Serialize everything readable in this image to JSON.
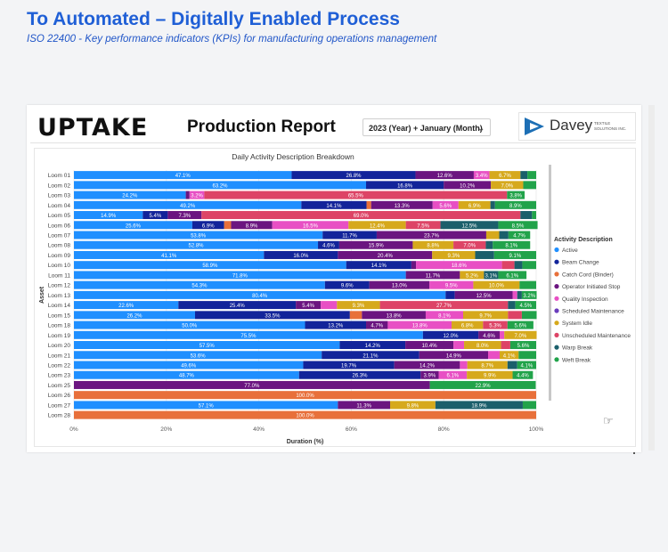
{
  "header": {
    "title": "To Automated – Digitally Enabled Process",
    "subtitle": "ISO 22400 - Key performance indicators (KPIs) for manufacturing operations management"
  },
  "report": {
    "logo_text": "UPTAKE",
    "title": "Production Report",
    "slicer_value": "2023 (Year) + January (Month)",
    "brand_name": "Davey",
    "brand_tagline": "TEXTILE SOLUTIONS INC.",
    "brand_color": "#1d6fb5"
  },
  "chart_data": {
    "type": "bar",
    "orientation": "horizontal",
    "stacked": "100%",
    "title": "Daily Activity Description Breakdown",
    "xlabel": "Duration (%)",
    "ylabel": "Asset",
    "xlim": [
      0,
      100
    ],
    "x_ticks": [
      "0%",
      "20%",
      "40%",
      "60%",
      "80%",
      "100%"
    ],
    "legend_title": "Activity Description",
    "legend_position": "right",
    "categories": [
      "Loom 01",
      "Loom 02",
      "Loom 03",
      "Loom 04",
      "Loom 05",
      "Loom 06",
      "Loom 07",
      "Loom 08",
      "Loom 09",
      "Loom 10",
      "Loom 11",
      "Loom 12",
      "Loom 13",
      "Loom 14",
      "Loom 15",
      "Loom 18",
      "Loom 19",
      "Loom 20",
      "Loom 21",
      "Loom 22",
      "Loom 23",
      "Loom 25",
      "Loom 26",
      "Loom 27",
      "Loom 28"
    ],
    "series": [
      {
        "name": "Active",
        "color": "#1f8fff",
        "values": [
          47.1,
          63.2,
          24.2,
          49.2,
          14.9,
          25.6,
          53.8,
          52.8,
          41.1,
          58.9,
          71.8,
          54.3,
          80.4,
          22.6,
          26.2,
          50.0,
          75.5,
          57.5,
          53.6,
          49.6,
          48.7,
          0,
          0,
          57.1,
          0
        ]
      },
      {
        "name": "Beam Change",
        "color": "#12249a",
        "values": [
          26.8,
          16.8,
          0,
          14.1,
          5.4,
          6.9,
          11.7,
          4.6,
          16.0,
          14.1,
          0,
          9.6,
          2.0,
          25.4,
          33.5,
          13.2,
          12.0,
          14.2,
          21.1,
          19.7,
          26.3,
          0,
          0,
          0,
          0
        ]
      },
      {
        "name": "Catch Cord (Binder)",
        "color": "#e8703a",
        "values": [
          0,
          0,
          0,
          1.0,
          0,
          1.5,
          0,
          0,
          0,
          0,
          0,
          0,
          0,
          0,
          2.6,
          0,
          0,
          0,
          0,
          0,
          0,
          0,
          100.0,
          0,
          100.0
        ]
      },
      {
        "name": "Operator Initiated Stop",
        "color": "#6b1580",
        "values": [
          12.6,
          10.2,
          0.8,
          13.3,
          7.3,
          8.9,
          23.7,
          15.9,
          20.4,
          1.0,
          11.7,
          13.0,
          12.5,
          5.4,
          13.8,
          4.7,
          4.6,
          10.4,
          14.9,
          14.2,
          3.9,
          77.0,
          0,
          11.3,
          0
        ]
      },
      {
        "name": "Quality Inspection",
        "color": "#e84fc4",
        "values": [
          3.4,
          0,
          3.2,
          5.6,
          0,
          16.5,
          0,
          0,
          0,
          18.6,
          0,
          9.5,
          1.0,
          3.5,
          8.1,
          13.8,
          1.0,
          2.3,
          2.5,
          1.6,
          6.1,
          0,
          0,
          0,
          0
        ]
      },
      {
        "name": "Scheduled Maintenance",
        "color": "#6a3cbc",
        "values": [
          0,
          0,
          0,
          0,
          0,
          0,
          0,
          0,
          0,
          0,
          0,
          0,
          0,
          0,
          0,
          0,
          0,
          0,
          0,
          0,
          0,
          0,
          0,
          0,
          0
        ]
      },
      {
        "name": "System Idle",
        "color": "#d6a91c",
        "values": [
          6.7,
          7.0,
          0,
          6.9,
          0,
          12.4,
          2.8,
          8.8,
          9.3,
          0,
          5.2,
          10.0,
          0,
          9.3,
          9.7,
          6.8,
          7.0,
          8.0,
          4.1,
          8.7,
          9.9,
          0,
          0,
          9.8,
          0
        ]
      },
      {
        "name": "Unscheduled Maintenance",
        "color": "#dd4466",
        "values": [
          0,
          0,
          65.5,
          0,
          69.0,
          7.5,
          0,
          7.0,
          0,
          2.7,
          0,
          0,
          0,
          27.7,
          3.0,
          5.3,
          0,
          2.0,
          0,
          0,
          0,
          0,
          0,
          0,
          0
        ]
      },
      {
        "name": "Warp Break",
        "color": "#1b5f6b",
        "values": [
          1.5,
          0,
          0,
          1.0,
          2.5,
          12.5,
          2.0,
          1.5,
          4.1,
          1.7,
          3.1,
          0,
          1.0,
          1.6,
          0,
          0,
          0,
          0,
          0,
          2.1,
          0,
          0,
          0,
          18.9,
          0
        ]
      },
      {
        "name": "Weft Break",
        "color": "#21a34a",
        "values": [
          1.9,
          2.8,
          3.8,
          8.9,
          0.9,
          8.5,
          4.7,
          8.1,
          9.1,
          3.0,
          6.1,
          3.6,
          3.2,
          4.5,
          3.2,
          5.6,
          0,
          5.6,
          3.8,
          4.1,
          4.4,
          22.9,
          0,
          2.9,
          0
        ]
      }
    ],
    "data_labels": [
      [
        [
          "Active",
          "47.1%"
        ],
        [
          "Beam Change",
          "26.8%"
        ],
        [
          "Operator Initiated Stop",
          "12.6%"
        ],
        [
          "Quality Inspection",
          "3.4%"
        ],
        [
          "System Idle",
          "6.7%"
        ]
      ],
      [
        [
          "Active",
          "63.2%"
        ],
        [
          "Beam Change",
          "16.8%"
        ],
        [
          "Operator Initiated Stop",
          "10.2%"
        ],
        [
          "System Idle",
          "7.0%"
        ]
      ],
      [
        [
          "Active",
          "24.2%"
        ],
        [
          "Quality Inspection",
          "3.2%"
        ],
        [
          "Unscheduled Maintenance",
          "65.5%"
        ],
        [
          "Weft Break",
          "3.8%"
        ]
      ],
      [
        [
          "Active",
          "49.2%"
        ],
        [
          "Beam Change",
          "14.1%"
        ],
        [
          "Operator Initiated Stop",
          "13.3%"
        ],
        [
          "Quality Inspection",
          "5.6%"
        ],
        [
          "System Idle",
          "6.9%"
        ],
        [
          "Weft Break",
          "8.9%"
        ]
      ],
      [
        [
          "Active",
          "14.9%"
        ],
        [
          "Beam Change",
          "5.4%"
        ],
        [
          "Operator Initiated Stop",
          "7.3%"
        ],
        [
          "Unscheduled Maintenance",
          "69.0%"
        ]
      ],
      [
        [
          "Active",
          "25.6%"
        ],
        [
          "Beam Change",
          "6.9%"
        ],
        [
          "Operator Initiated Stop",
          "8.9%"
        ],
        [
          "Quality Inspection",
          "16.5%"
        ],
        [
          "System Idle",
          "12.4%"
        ],
        [
          "Unscheduled Maintenance",
          "7.5%"
        ],
        [
          "Warp Break",
          "12.5%"
        ],
        [
          "Weft Break",
          "8.5%"
        ]
      ],
      [
        [
          "Active",
          "53.8%"
        ],
        [
          "Beam Change",
          "11.7%"
        ],
        [
          "Operator Initiated Stop",
          "23.7%"
        ],
        [
          "Weft Break",
          "4.7%"
        ]
      ],
      [
        [
          "Active",
          "52.8%"
        ],
        [
          "Beam Change",
          "4.6%"
        ],
        [
          "Operator Initiated Stop",
          "15.9%"
        ],
        [
          "System Idle",
          "8.8%"
        ],
        [
          "Unscheduled Maintenance",
          "7.0%"
        ],
        [
          "Weft Break",
          "8.1%"
        ]
      ],
      [
        [
          "Active",
          "41.1%"
        ],
        [
          "Beam Change",
          "16.0%"
        ],
        [
          "Operator Initiated Stop",
          "20.4%"
        ],
        [
          "System Idle",
          "9.3%"
        ],
        [
          "Weft Break",
          "9.1%"
        ]
      ],
      [
        [
          "Active",
          "58.9%"
        ],
        [
          "Beam Change",
          "14.1%"
        ],
        [
          "Quality Inspection",
          "18.6%"
        ]
      ],
      [
        [
          "Active",
          "71.8%"
        ],
        [
          "Operator Initiated Stop",
          "11.7%"
        ],
        [
          "System Idle",
          "5.2%"
        ],
        [
          "Warp Break",
          "3.1%"
        ],
        [
          "Weft Break",
          "6.1%"
        ]
      ],
      [
        [
          "Active",
          "54.3%"
        ],
        [
          "Beam Change",
          "9.6%"
        ],
        [
          "Operator Initiated Stop",
          "13.0%"
        ],
        [
          "Quality Inspection",
          "9.5%"
        ],
        [
          "System Idle",
          "10.0%"
        ]
      ],
      [
        [
          "Active",
          "80.4%"
        ],
        [
          "Operator Initiated Stop",
          "12.5%"
        ],
        [
          "Weft Break",
          "3.2%"
        ]
      ],
      [
        [
          "Active",
          "22.6%"
        ],
        [
          "Beam Change",
          "25.4%"
        ],
        [
          "Operator Initiated Stop",
          "5.4%"
        ],
        [
          "System Idle",
          "9.3%"
        ],
        [
          "Unscheduled Maintenance",
          "27.7%"
        ],
        [
          "Weft Break",
          "4.5%"
        ]
      ],
      [
        [
          "Active",
          "26.2%"
        ],
        [
          "Beam Change",
          "33.5%"
        ],
        [
          "Operator Initiated Stop",
          "13.8%"
        ],
        [
          "Quality Inspection",
          "8.1%"
        ],
        [
          "System Idle",
          "9.7%"
        ]
      ],
      [
        [
          "Active",
          "50.0%"
        ],
        [
          "Beam Change",
          "13.2%"
        ],
        [
          "Operator Initiated Stop",
          "4.7%"
        ],
        [
          "Quality Inspection",
          "13.8%"
        ],
        [
          "System Idle",
          "6.8%"
        ],
        [
          "Unscheduled Maintenance",
          "5.3%"
        ],
        [
          "Weft Break",
          "5.6%"
        ]
      ],
      [
        [
          "Active",
          "75.5%"
        ],
        [
          "Beam Change",
          "12.0%"
        ],
        [
          "Operator Initiated Stop",
          "4.6%"
        ],
        [
          "System Idle",
          "7.0%"
        ]
      ],
      [
        [
          "Active",
          "57.5%"
        ],
        [
          "Beam Change",
          "14.2%"
        ],
        [
          "Operator Initiated Stop",
          "10.4%"
        ],
        [
          "System Idle",
          "8.0%"
        ],
        [
          "Weft Break",
          "5.6%"
        ]
      ],
      [
        [
          "Active",
          "53.6%"
        ],
        [
          "Beam Change",
          "21.1%"
        ],
        [
          "Operator Initiated Stop",
          "14.9%"
        ],
        [
          "System Idle",
          "4.1%"
        ]
      ],
      [
        [
          "Active",
          "49.6%"
        ],
        [
          "Beam Change",
          "19.7%"
        ],
        [
          "Operator Initiated Stop",
          "14.2%"
        ],
        [
          "System Idle",
          "8.7%"
        ],
        [
          "Weft Break",
          "4.1%"
        ]
      ],
      [
        [
          "Active",
          "48.7%"
        ],
        [
          "Beam Change",
          "26.3%"
        ],
        [
          "Operator Initiated Stop",
          "3.9%"
        ],
        [
          "Quality Inspection",
          "6.1%"
        ],
        [
          "System Idle",
          "9.9%"
        ],
        [
          "Weft Break",
          "4.4%"
        ]
      ],
      [
        [
          "Operator Initiated Stop",
          "77.0%"
        ],
        [
          "Weft Break",
          "22.9%"
        ]
      ],
      [
        [
          "Catch Cord (Binder)",
          "100.0%"
        ]
      ],
      [
        [
          "Active",
          "57.1%"
        ],
        [
          "Operator Initiated Stop",
          "11.3%"
        ],
        [
          "System Idle",
          "9.8%"
        ],
        [
          "Warp Break",
          "18.9%"
        ]
      ],
      [
        [
          "Catch Cord (Binder)",
          "100.0%"
        ]
      ]
    ]
  }
}
